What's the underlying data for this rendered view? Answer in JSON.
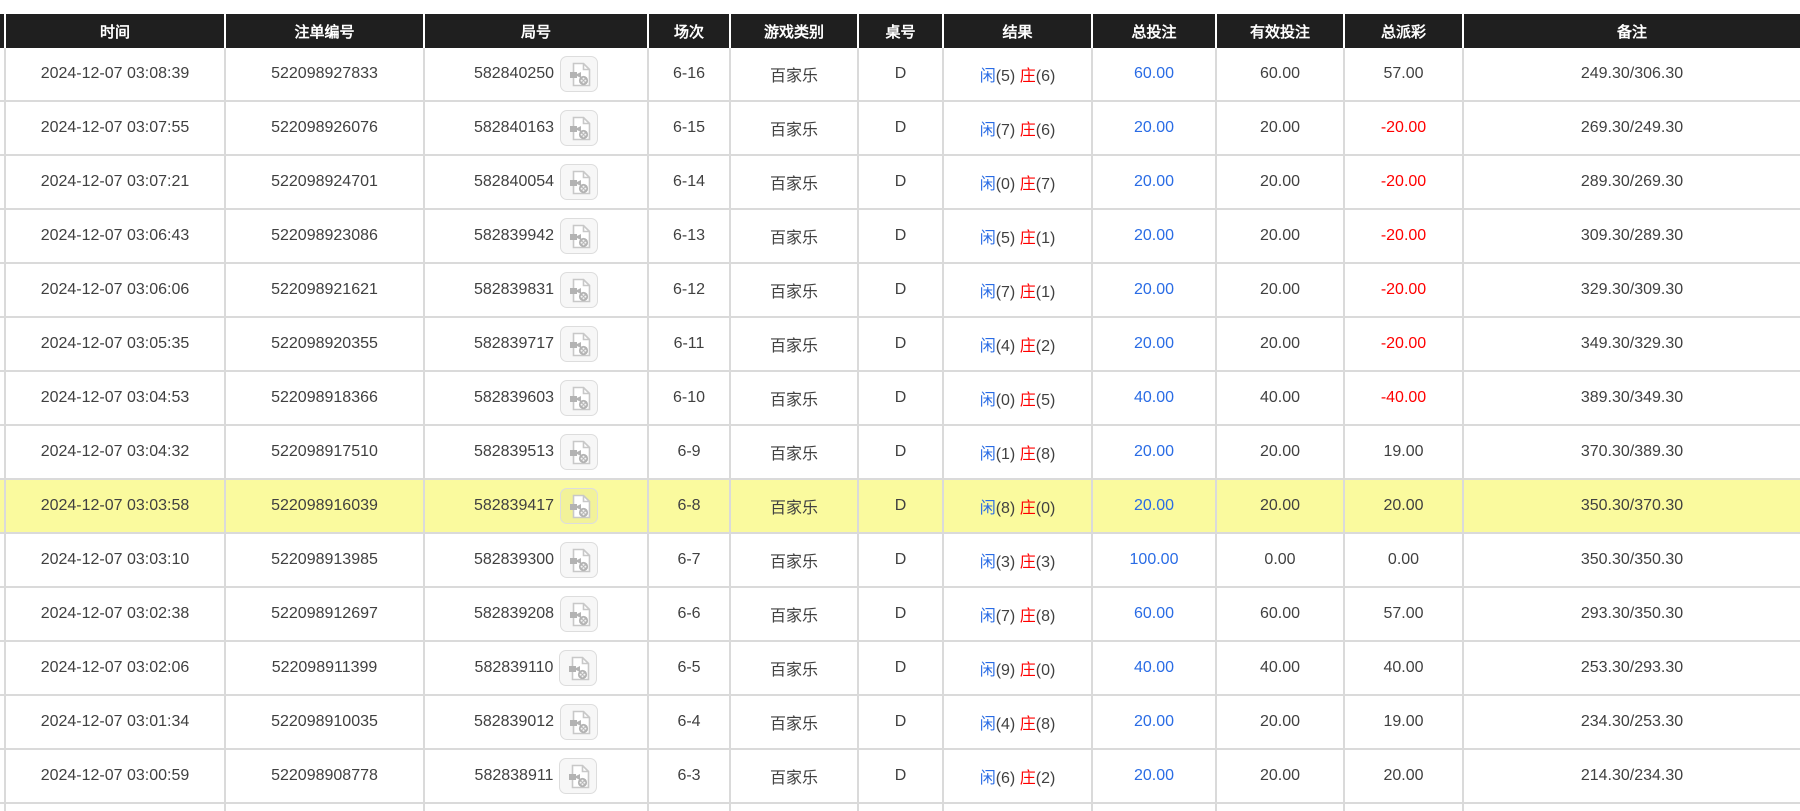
{
  "colors": {
    "header_bg": "#1f1f1f",
    "header_text": "#ffffff",
    "grid_line": "#dadada",
    "body_text": "#404040",
    "player_blue": "#2a6ce5",
    "banker_red": "#ff0000",
    "bet_blue": "#2a6ce5",
    "loss_red": "#ff0000",
    "highlight_yellow": "#fafa9e"
  },
  "table": {
    "columns": [
      {
        "key": "time",
        "label": "时间"
      },
      {
        "key": "bet_id",
        "label": "注单编号"
      },
      {
        "key": "round_id",
        "label": "局号"
      },
      {
        "key": "session",
        "label": "场次"
      },
      {
        "key": "game_type",
        "label": "游戏类别"
      },
      {
        "key": "table_no",
        "label": "桌号"
      },
      {
        "key": "result",
        "label": "结果"
      },
      {
        "key": "total_bet",
        "label": "总投注"
      },
      {
        "key": "valid_bet",
        "label": "有效投注"
      },
      {
        "key": "total_payout",
        "label": "总派彩"
      },
      {
        "key": "remark",
        "label": "备注"
      }
    ],
    "row_icon": "video-replay-icon",
    "rows": [
      {
        "time": "2024-12-07 03:08:39",
        "bet_id": "522098927833",
        "round_id": "582840250",
        "session": "6-16",
        "game_type": "百家乐",
        "table_no": "D",
        "result": {
          "player": "闲",
          "player_pts": "(5)",
          "banker": "庄",
          "banker_pts": "(6)"
        },
        "total_bet": "60.00",
        "valid_bet": "60.00",
        "total_payout": "57.00",
        "remark": "249.30/306.30",
        "highlighted": false
      },
      {
        "time": "2024-12-07 03:07:55",
        "bet_id": "522098926076",
        "round_id": "582840163",
        "session": "6-15",
        "game_type": "百家乐",
        "table_no": "D",
        "result": {
          "player": "闲",
          "player_pts": "(7)",
          "banker": "庄",
          "banker_pts": "(6)"
        },
        "total_bet": "20.00",
        "valid_bet": "20.00",
        "total_payout": "-20.00",
        "remark": "269.30/249.30",
        "highlighted": false
      },
      {
        "time": "2024-12-07 03:07:21",
        "bet_id": "522098924701",
        "round_id": "582840054",
        "session": "6-14",
        "game_type": "百家乐",
        "table_no": "D",
        "result": {
          "player": "闲",
          "player_pts": "(0)",
          "banker": "庄",
          "banker_pts": "(7)"
        },
        "total_bet": "20.00",
        "valid_bet": "20.00",
        "total_payout": "-20.00",
        "remark": "289.30/269.30",
        "highlighted": false
      },
      {
        "time": "2024-12-07 03:06:43",
        "bet_id": "522098923086",
        "round_id": "582839942",
        "session": "6-13",
        "game_type": "百家乐",
        "table_no": "D",
        "result": {
          "player": "闲",
          "player_pts": "(5)",
          "banker": "庄",
          "banker_pts": "(1)"
        },
        "total_bet": "20.00",
        "valid_bet": "20.00",
        "total_payout": "-20.00",
        "remark": "309.30/289.30",
        "highlighted": false
      },
      {
        "time": "2024-12-07 03:06:06",
        "bet_id": "522098921621",
        "round_id": "582839831",
        "session": "6-12",
        "game_type": "百家乐",
        "table_no": "D",
        "result": {
          "player": "闲",
          "player_pts": "(7)",
          "banker": "庄",
          "banker_pts": "(1)"
        },
        "total_bet": "20.00",
        "valid_bet": "20.00",
        "total_payout": "-20.00",
        "remark": "329.30/309.30",
        "highlighted": false
      },
      {
        "time": "2024-12-07 03:05:35",
        "bet_id": "522098920355",
        "round_id": "582839717",
        "session": "6-11",
        "game_type": "百家乐",
        "table_no": "D",
        "result": {
          "player": "闲",
          "player_pts": "(4)",
          "banker": "庄",
          "banker_pts": "(2)"
        },
        "total_bet": "20.00",
        "valid_bet": "20.00",
        "total_payout": "-20.00",
        "remark": "349.30/329.30",
        "highlighted": false
      },
      {
        "time": "2024-12-07 03:04:53",
        "bet_id": "522098918366",
        "round_id": "582839603",
        "session": "6-10",
        "game_type": "百家乐",
        "table_no": "D",
        "result": {
          "player": "闲",
          "player_pts": "(0)",
          "banker": "庄",
          "banker_pts": "(5)"
        },
        "total_bet": "40.00",
        "valid_bet": "40.00",
        "total_payout": "-40.00",
        "remark": "389.30/349.30",
        "highlighted": false
      },
      {
        "time": "2024-12-07 03:04:32",
        "bet_id": "522098917510",
        "round_id": "582839513",
        "session": "6-9",
        "game_type": "百家乐",
        "table_no": "D",
        "result": {
          "player": "闲",
          "player_pts": "(1)",
          "banker": "庄",
          "banker_pts": "(8)"
        },
        "total_bet": "20.00",
        "valid_bet": "20.00",
        "total_payout": "19.00",
        "remark": "370.30/389.30",
        "highlighted": false
      },
      {
        "time": "2024-12-07 03:03:58",
        "bet_id": "522098916039",
        "round_id": "582839417",
        "session": "6-8",
        "game_type": "百家乐",
        "table_no": "D",
        "result": {
          "player": "闲",
          "player_pts": "(8)",
          "banker": "庄",
          "banker_pts": "(0)"
        },
        "total_bet": "20.00",
        "valid_bet": "20.00",
        "total_payout": "20.00",
        "remark": "350.30/370.30",
        "highlighted": true
      },
      {
        "time": "2024-12-07 03:03:10",
        "bet_id": "522098913985",
        "round_id": "582839300",
        "session": "6-7",
        "game_type": "百家乐",
        "table_no": "D",
        "result": {
          "player": "闲",
          "player_pts": "(3)",
          "banker": "庄",
          "banker_pts": "(3)"
        },
        "total_bet": "100.00",
        "valid_bet": "0.00",
        "total_payout": "0.00",
        "remark": "350.30/350.30",
        "highlighted": false
      },
      {
        "time": "2024-12-07 03:02:38",
        "bet_id": "522098912697",
        "round_id": "582839208",
        "session": "6-6",
        "game_type": "百家乐",
        "table_no": "D",
        "result": {
          "player": "闲",
          "player_pts": "(7)",
          "banker": "庄",
          "banker_pts": "(8)"
        },
        "total_bet": "60.00",
        "valid_bet": "60.00",
        "total_payout": "57.00",
        "remark": "293.30/350.30",
        "highlighted": false
      },
      {
        "time": "2024-12-07 03:02:06",
        "bet_id": "522098911399",
        "round_id": "582839110",
        "session": "6-5",
        "game_type": "百家乐",
        "table_no": "D",
        "result": {
          "player": "闲",
          "player_pts": "(9)",
          "banker": "庄",
          "banker_pts": "(0)"
        },
        "total_bet": "40.00",
        "valid_bet": "40.00",
        "total_payout": "40.00",
        "remark": "253.30/293.30",
        "highlighted": false
      },
      {
        "time": "2024-12-07 03:01:34",
        "bet_id": "522098910035",
        "round_id": "582839012",
        "session": "6-4",
        "game_type": "百家乐",
        "table_no": "D",
        "result": {
          "player": "闲",
          "player_pts": "(4)",
          "banker": "庄",
          "banker_pts": "(8)"
        },
        "total_bet": "20.00",
        "valid_bet": "20.00",
        "total_payout": "19.00",
        "remark": "234.30/253.30",
        "highlighted": false
      },
      {
        "time": "2024-12-07 03:00:59",
        "bet_id": "522098908778",
        "round_id": "582838911",
        "session": "6-3",
        "game_type": "百家乐",
        "table_no": "D",
        "result": {
          "player": "闲",
          "player_pts": "(6)",
          "banker": "庄",
          "banker_pts": "(2)"
        },
        "total_bet": "20.00",
        "valid_bet": "20.00",
        "total_payout": "20.00",
        "remark": "214.30/234.30",
        "highlighted": false
      }
    ]
  }
}
